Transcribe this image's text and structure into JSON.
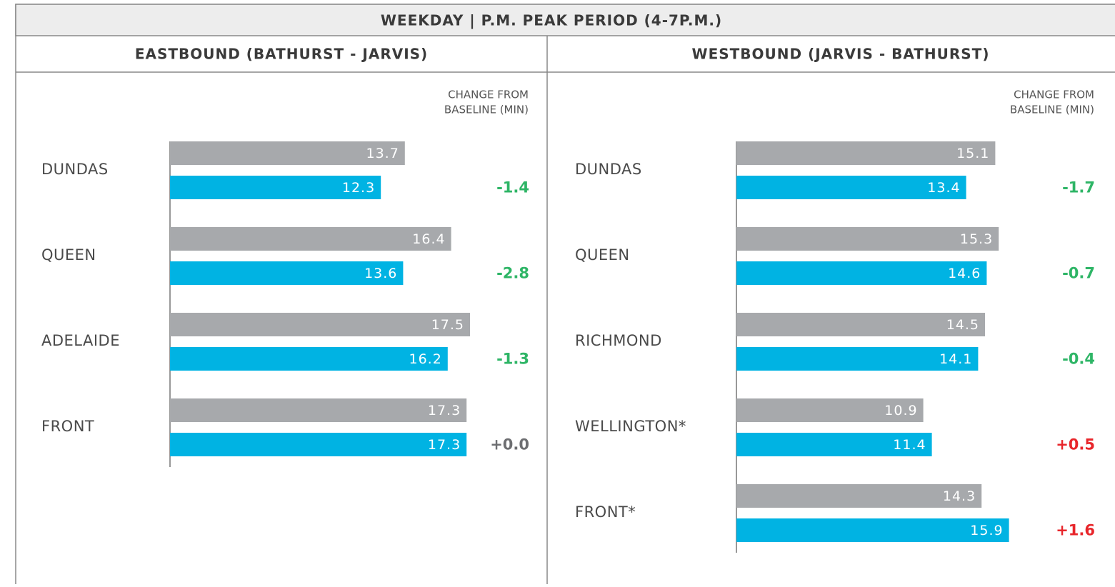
{
  "header": {
    "title": "WEEKDAY | P.M. PEAK PERIOD (4-7P.M.)"
  },
  "chart_data": [
    {
      "type": "bar",
      "orientation": "horizontal",
      "title": "EASTBOUND (BATHURST - JARVIS)",
      "categories": [
        "DUNDAS",
        "QUEEN",
        "ADELAIDE",
        "FRONT"
      ],
      "series": [
        {
          "color": "#a7a9ac",
          "values": [
            13.7,
            16.4,
            17.5,
            17.3
          ]
        },
        {
          "color": "#00b3e3",
          "values": [
            12.3,
            13.6,
            16.2,
            17.3
          ]
        }
      ],
      "xlim": [
        0,
        20
      ],
      "changes": {
        "label_lines": [
          "CHANGE FROM",
          "BASELINE (MIN)"
        ],
        "values": [
          -1.4,
          -2.8,
          -1.3,
          0
        ],
        "value_labels": [
          "-1.4",
          "-2.8",
          "-1.3",
          "+0.0"
        ],
        "colors": [
          "#2eb566",
          "#2eb566",
          "#2eb566",
          "#6d6e71"
        ]
      }
    },
    {
      "type": "bar",
      "orientation": "horizontal",
      "title": "WESTBOUND (JARVIS - BATHURST)",
      "categories": [
        "DUNDAS",
        "QUEEN",
        "RICHMOND",
        "WELLINGTON*",
        "FRONT*"
      ],
      "series": [
        {
          "color": "#a7a9ac",
          "values": [
            15.1,
            15.3,
            14.5,
            10.9,
            14.3
          ]
        },
        {
          "color": "#00b3e3",
          "values": [
            13.4,
            14.6,
            14.1,
            11.4,
            15.9
          ]
        }
      ],
      "xlim": [
        0,
        20
      ],
      "changes": {
        "label_lines": [
          "CHANGE FROM",
          "BASELINE (MIN)"
        ],
        "values": [
          -1.7,
          -0.7,
          -0.4,
          0.5,
          1.6
        ],
        "value_labels": [
          "-1.7",
          "-0.7",
          "-0.4",
          "+0.5",
          "+1.6"
        ],
        "colors": [
          "#2eb566",
          "#2eb566",
          "#2eb566",
          "#e8262b",
          "#e8262b"
        ]
      }
    }
  ]
}
